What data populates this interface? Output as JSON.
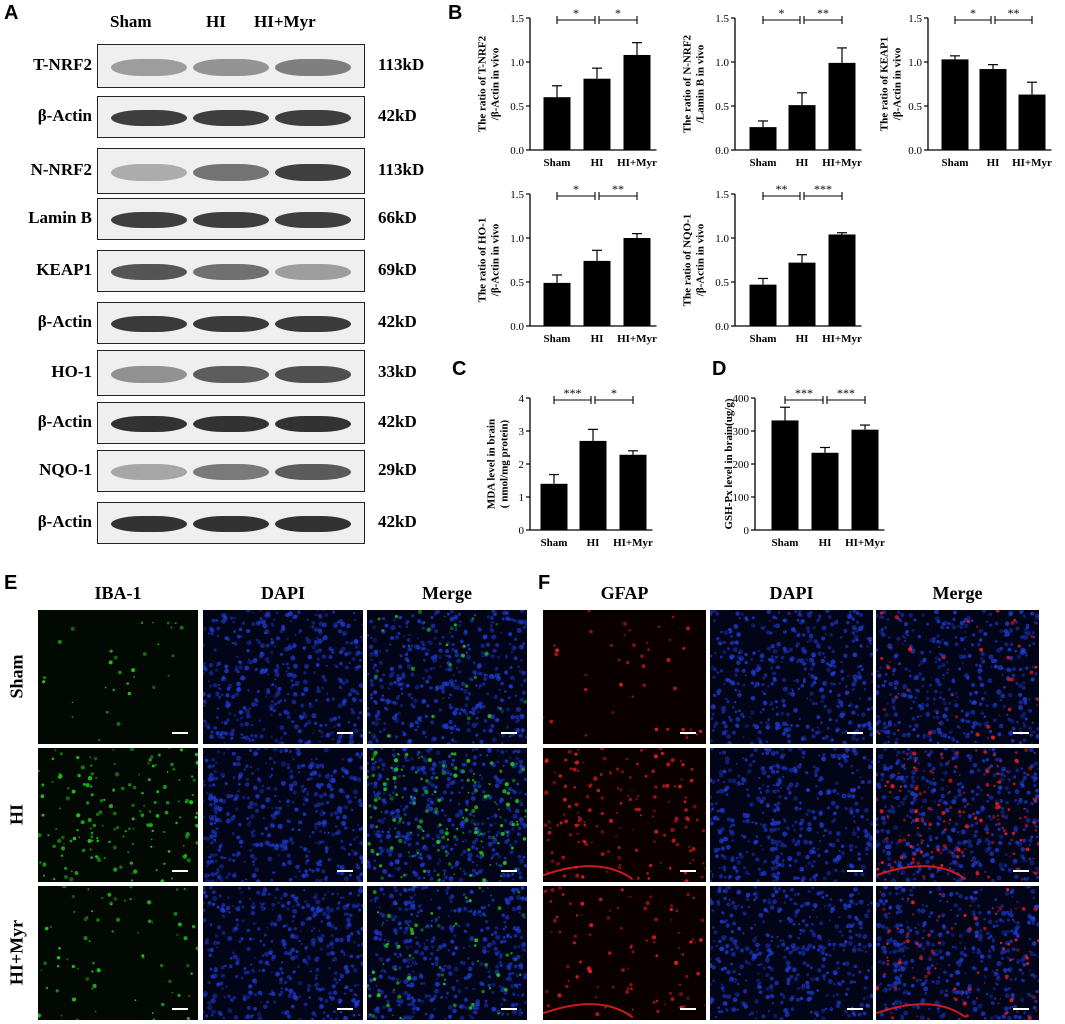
{
  "panels": {
    "A": "A",
    "B": "B",
    "C": "C",
    "D": "D",
    "E": "E",
    "F": "F"
  },
  "blot": {
    "columns": [
      "Sham",
      "HI",
      "HI+Myr"
    ],
    "rows": [
      {
        "label": "T-NRF2",
        "kd": "113kD",
        "intensity": [
          0.55,
          0.62,
          0.75
        ],
        "tone": "#5a5a5a"
      },
      {
        "label": "β-Actin",
        "kd": "42kD",
        "intensity": [
          0.9,
          0.9,
          0.9
        ],
        "tone": "#2a2a2a"
      },
      {
        "label": "N-NRF2",
        "kd": "113kD",
        "intensity": [
          0.35,
          0.65,
          0.92
        ],
        "tone": "#303030"
      },
      {
        "label": "Lamin B",
        "kd": "66kD",
        "intensity": [
          0.88,
          0.88,
          0.88
        ],
        "tone": "#252525"
      },
      {
        "label": "KEAP1",
        "kd": "69kD",
        "intensity": [
          0.85,
          0.7,
          0.45
        ],
        "tone": "#3a3a3a"
      },
      {
        "label": "β-Actin",
        "kd": "42kD",
        "intensity": [
          0.9,
          0.9,
          0.9
        ],
        "tone": "#262626"
      },
      {
        "label": "HO-1",
        "kd": "33kD",
        "intensity": [
          0.5,
          0.78,
          0.85
        ],
        "tone": "#333333"
      },
      {
        "label": "β-Actin",
        "kd": "42kD",
        "intensity": [
          0.92,
          0.92,
          0.92
        ],
        "tone": "#222222"
      },
      {
        "label": "NQO-1",
        "kd": "29kD",
        "intensity": [
          0.4,
          0.65,
          0.82
        ],
        "tone": "#3a3a3a"
      },
      {
        "label": "β-Actin",
        "kd": "42kD",
        "intensity": [
          0.92,
          0.92,
          0.92
        ],
        "tone": "#222222"
      }
    ]
  },
  "chart_data": [
    {
      "type": "bar",
      "categories": [
        "Sham",
        "HI",
        "HI+Myr"
      ],
      "values": [
        0.6,
        0.81,
        1.08
      ],
      "errors": [
        0.13,
        0.12,
        0.14
      ],
      "ylabel": [
        "The ratio of T-NRF2",
        "/β-Actin in vivo"
      ],
      "ylim": [
        0,
        1.5
      ],
      "ticks": [
        "0.0",
        "0.5",
        "1.0",
        "1.5"
      ],
      "sig": [
        "*",
        "*"
      ]
    },
    {
      "type": "bar",
      "categories": [
        "Sham",
        "HI",
        "HI+Myr"
      ],
      "values": [
        0.26,
        0.51,
        0.99
      ],
      "errors": [
        0.07,
        0.14,
        0.17
      ],
      "ylabel": [
        "The ratio of N-NRF2",
        "/Lamin B in vivo"
      ],
      "ylim": [
        0,
        1.5
      ],
      "ticks": [
        "0.0",
        "0.5",
        "1.0",
        "1.5"
      ],
      "sig": [
        "*",
        "**"
      ]
    },
    {
      "type": "bar",
      "categories": [
        "Sham",
        "HI",
        "HI+Myr"
      ],
      "values": [
        1.03,
        0.92,
        0.63
      ],
      "errors": [
        0.04,
        0.05,
        0.14
      ],
      "ylabel": [
        "The ratio of KEAP1",
        "/β-Actin in vivo"
      ],
      "ylim": [
        0,
        1.5
      ],
      "ticks": [
        "0.0",
        "0.5",
        "1.0",
        "1.5"
      ],
      "sig": [
        "*",
        "**"
      ]
    },
    {
      "type": "bar",
      "categories": [
        "Sham",
        "HI",
        "HI+Myr"
      ],
      "values": [
        0.49,
        0.74,
        1.0
      ],
      "errors": [
        0.09,
        0.12,
        0.05
      ],
      "ylabel": [
        "The ratio of HO-1",
        "/β-Actin in vivo"
      ],
      "ylim": [
        0,
        1.5
      ],
      "ticks": [
        "0.0",
        "0.5",
        "1.0",
        "1.5"
      ],
      "sig": [
        "*",
        "**"
      ]
    },
    {
      "type": "bar",
      "categories": [
        "Sham",
        "HI",
        "HI+Myr"
      ],
      "values": [
        0.47,
        0.72,
        1.04
      ],
      "errors": [
        0.07,
        0.09,
        0.02
      ],
      "ylabel": [
        "The ratio of NQO-1",
        "/β-Actin in vivo"
      ],
      "ylim": [
        0,
        1.5
      ],
      "ticks": [
        "0.0",
        "0.5",
        "1.0",
        "1.5"
      ],
      "sig": [
        "**",
        "***"
      ]
    },
    {
      "type": "bar",
      "categories": [
        "Sham",
        "HI",
        "HI+Myr"
      ],
      "values": [
        1.4,
        2.7,
        2.28
      ],
      "errors": [
        0.28,
        0.35,
        0.12
      ],
      "ylabel": [
        "MDA level in brain",
        "( nmol/mg protein)"
      ],
      "ylim": [
        0,
        4
      ],
      "ticks": [
        "0",
        "1",
        "2",
        "3",
        "4"
      ],
      "sig": [
        "***",
        "*"
      ]
    },
    {
      "type": "bar",
      "categories": [
        "Sham",
        "HI",
        "HI+Myr"
      ],
      "values": [
        332,
        234,
        304
      ],
      "errors": [
        40,
        16,
        14
      ],
      "ylabel": [
        "GSH-Px level in brain(ug/g)"
      ],
      "ylim": [
        0,
        400
      ],
      "ticks": [
        "0",
        "100",
        "200",
        "300",
        "400"
      ],
      "sig": [
        "***",
        "***"
      ]
    }
  ],
  "if_e": {
    "headers": [
      "IBA-1",
      "DAPI",
      "Merge"
    ],
    "rows": [
      "Sham",
      "HI",
      "HI+Myr"
    ]
  },
  "if_f": {
    "headers": [
      "GFAP",
      "DAPI",
      "Merge"
    ]
  },
  "colors": {
    "green": "#22c41e",
    "blue": "#1e3cd2",
    "red": "#e01e1e",
    "bar": "#000000"
  }
}
